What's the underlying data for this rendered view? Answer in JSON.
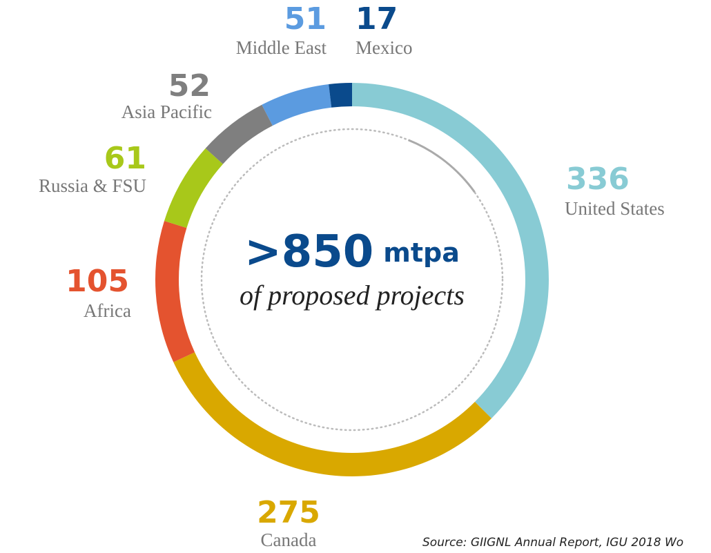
{
  "chart_data": {
    "type": "donut",
    "center_value": ">850",
    "center_unit": "mtpa",
    "center_caption": "of proposed projects",
    "categories": [
      "United States",
      "Canada",
      "Africa",
      "Russia & FSU",
      "Asia Pacific",
      "Middle East",
      "Mexico"
    ],
    "values": [
      336,
      275,
      105,
      61,
      52,
      51,
      17
    ],
    "colors": [
      "#88cbd4",
      "#d9a800",
      "#e4532f",
      "#a8c81a",
      "#7f7f7f",
      "#5b9be0",
      "#0a4a8c"
    ],
    "source": "Source: GIIGNL Annual Report, IGU 2018 Wo"
  }
}
